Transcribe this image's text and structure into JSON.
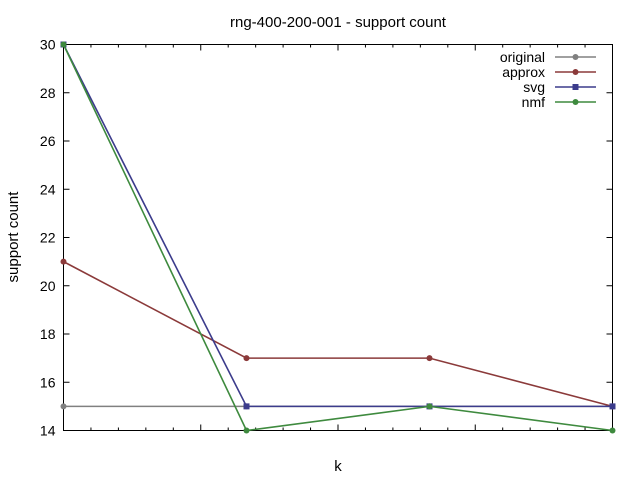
{
  "chart_data": {
    "type": "line",
    "title": "rng-400-200-001 - support count",
    "xlabel": "k",
    "ylabel": "support count",
    "x": [
      1,
      2,
      3,
      4
    ],
    "xlim": [
      1,
      4
    ],
    "ylim": [
      14,
      30
    ],
    "yticks": [
      14,
      16,
      18,
      20,
      22,
      24,
      26,
      28,
      30
    ],
    "ytick_labels": [
      "14",
      "16",
      "18",
      "20",
      "22",
      "24",
      "26",
      "28",
      "30"
    ],
    "x_tick_labels_shown": false,
    "grid": false,
    "legend_position": "top-right",
    "series": [
      {
        "name": "original",
        "color": "#808080",
        "marker": "circle",
        "points": [
          [
            1,
            15
          ],
          [
            2,
            15
          ],
          [
            3,
            15
          ],
          [
            4,
            15
          ]
        ]
      },
      {
        "name": "approx",
        "color": "#8b3a3a",
        "marker": "circle",
        "points": [
          [
            1,
            21
          ],
          [
            2,
            17
          ],
          [
            3,
            17
          ],
          [
            4,
            15
          ]
        ]
      },
      {
        "name": "svg",
        "color": "#3c3c8c",
        "marker": "square",
        "points": [
          [
            1,
            30
          ],
          [
            2,
            15
          ],
          [
            3,
            15
          ],
          [
            4,
            15
          ]
        ]
      },
      {
        "name": "nmf",
        "color": "#3e8a3e",
        "marker": "circle",
        "points": [
          [
            1,
            30
          ],
          [
            2,
            14
          ],
          [
            3,
            15
          ],
          [
            4,
            14
          ]
        ]
      }
    ]
  }
}
